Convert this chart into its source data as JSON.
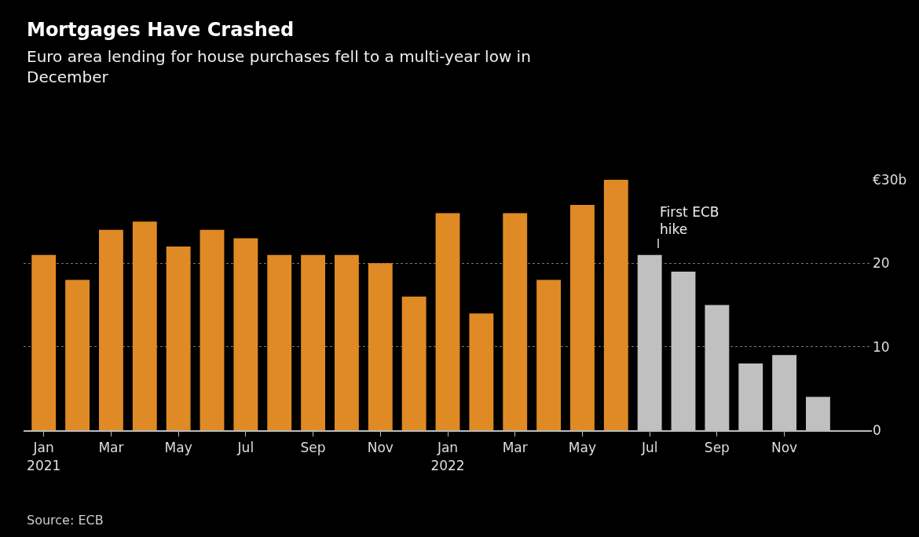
{
  "chart_data": {
    "type": "bar",
    "title": "Mortgages Have Crashed",
    "subtitle": "Euro area lending for house purchases fell to a multi-year low in\nDecember",
    "categories": [
      "Jan\n2021",
      null,
      "Mar",
      null,
      "May",
      null,
      "Jul",
      null,
      "Sep",
      null,
      "Nov",
      null,
      "Jan\n2022",
      null,
      "Mar",
      null,
      "May",
      null,
      "Jul",
      null,
      "Sep",
      null,
      "Nov",
      null
    ],
    "values": [
      21,
      18,
      24,
      25,
      22,
      24,
      23,
      21,
      21,
      21,
      20,
      16,
      26,
      14,
      26,
      18,
      27,
      30,
      21,
      19,
      15,
      8,
      9,
      4
    ],
    "colors": [
      "#e08a25",
      "#e08a25",
      "#e08a25",
      "#e08a25",
      "#e08a25",
      "#e08a25",
      "#e08a25",
      "#e08a25",
      "#e08a25",
      "#e08a25",
      "#e08a25",
      "#e08a25",
      "#e08a25",
      "#e08a25",
      "#e08a25",
      "#e08a25",
      "#e08a25",
      "#e08a25",
      "#c0c0c0",
      "#c0c0c0",
      "#c0c0c0",
      "#c0c0c0",
      "#c0c0c0",
      "#c0c0c0"
    ],
    "ylim": [
      0,
      30
    ],
    "yticks": [
      0,
      10,
      20,
      {
        "value": 30,
        "label": "€30b"
      }
    ],
    "grid": "y",
    "annotations": [
      "First ECB\nhike",
      "Source: ECB"
    ]
  }
}
